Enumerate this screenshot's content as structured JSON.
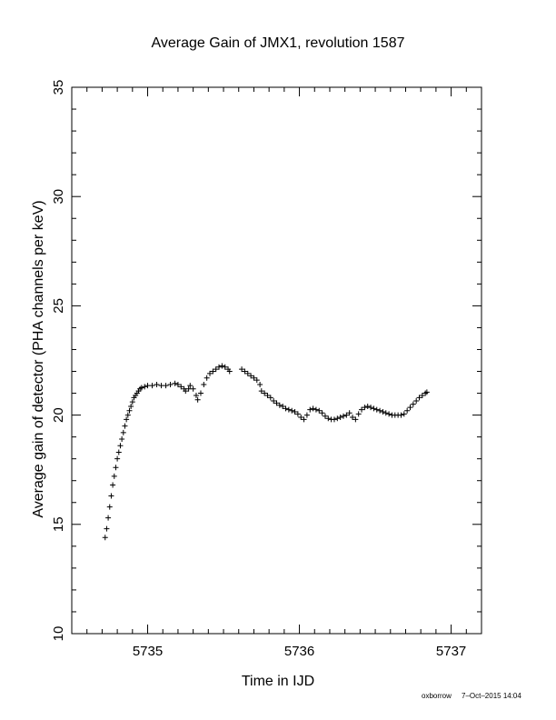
{
  "chart_data": {
    "type": "scatter",
    "title": "Average Gain of JMX1, revolution 1587",
    "xlabel": "Time in IJD",
    "ylabel": "Average gain of detector (PHA channels per keV)",
    "xlim": [
      5734.5,
      5737.2
    ],
    "ylim": [
      10,
      35
    ],
    "xticks": [
      5735,
      5736,
      5737
    ],
    "yticks": [
      10,
      15,
      20,
      25,
      30,
      35
    ],
    "x_minor_step": 0.1,
    "y_minor_step": 1,
    "marker": "plus",
    "grid": false,
    "series": [
      {
        "points": [
          [
            5734.72,
            14.4
          ],
          [
            5734.73,
            14.8
          ],
          [
            5734.74,
            15.3
          ],
          [
            5734.75,
            15.8
          ],
          [
            5734.76,
            16.3
          ],
          [
            5734.77,
            16.8
          ],
          [
            5734.78,
            17.2
          ],
          [
            5734.79,
            17.6
          ],
          [
            5734.8,
            18.0
          ],
          [
            5734.81,
            18.3
          ],
          [
            5734.82,
            18.6
          ],
          [
            5734.83,
            18.9
          ],
          [
            5734.84,
            19.2
          ],
          [
            5734.85,
            19.5
          ],
          [
            5734.86,
            19.8
          ],
          [
            5734.87,
            20.0
          ],
          [
            5734.88,
            20.2
          ],
          [
            5734.89,
            20.4
          ],
          [
            5734.9,
            20.6
          ],
          [
            5734.91,
            20.8
          ],
          [
            5734.92,
            20.9
          ],
          [
            5734.93,
            21.0
          ],
          [
            5734.94,
            21.1
          ],
          [
            5734.95,
            21.2
          ],
          [
            5734.96,
            21.25
          ],
          [
            5734.98,
            21.3
          ],
          [
            5735.0,
            21.35
          ],
          [
            5735.03,
            21.35
          ],
          [
            5735.06,
            21.4
          ],
          [
            5735.09,
            21.35
          ],
          [
            5735.12,
            21.35
          ],
          [
            5735.15,
            21.4
          ],
          [
            5735.18,
            21.45
          ],
          [
            5735.2,
            21.4
          ],
          [
            5735.22,
            21.3
          ],
          [
            5735.24,
            21.2
          ],
          [
            5735.25,
            21.1
          ],
          [
            5735.27,
            21.2
          ],
          [
            5735.28,
            21.35
          ],
          [
            5735.3,
            21.2
          ],
          [
            5735.32,
            20.9
          ],
          [
            5735.33,
            20.7
          ],
          [
            5735.35,
            21.0
          ],
          [
            5735.37,
            21.4
          ],
          [
            5735.39,
            21.7
          ],
          [
            5735.41,
            21.9
          ],
          [
            5735.43,
            22.0
          ],
          [
            5735.45,
            22.1
          ],
          [
            5735.47,
            22.2
          ],
          [
            5735.49,
            22.25
          ],
          [
            5735.51,
            22.2
          ],
          [
            5735.53,
            22.1
          ],
          [
            5735.54,
            22.0
          ],
          [
            5735.62,
            22.1
          ],
          [
            5735.64,
            22.0
          ],
          [
            5735.66,
            21.9
          ],
          [
            5735.68,
            21.8
          ],
          [
            5735.7,
            21.7
          ],
          [
            5735.72,
            21.6
          ],
          [
            5735.74,
            21.4
          ],
          [
            5735.75,
            21.1
          ],
          [
            5735.77,
            21.0
          ],
          [
            5735.79,
            20.9
          ],
          [
            5735.81,
            20.8
          ],
          [
            5735.83,
            20.65
          ],
          [
            5735.85,
            20.55
          ],
          [
            5735.87,
            20.45
          ],
          [
            5735.89,
            20.4
          ],
          [
            5735.91,
            20.3
          ],
          [
            5735.93,
            20.25
          ],
          [
            5735.95,
            20.2
          ],
          [
            5735.97,
            20.15
          ],
          [
            5735.99,
            20.05
          ],
          [
            5736.01,
            19.9
          ],
          [
            5736.03,
            19.8
          ],
          [
            5736.05,
            20.0
          ],
          [
            5736.07,
            20.25
          ],
          [
            5736.09,
            20.3
          ],
          [
            5736.11,
            20.25
          ],
          [
            5736.13,
            20.2
          ],
          [
            5736.15,
            20.1
          ],
          [
            5736.17,
            19.95
          ],
          [
            5736.19,
            19.85
          ],
          [
            5736.21,
            19.8
          ],
          [
            5736.23,
            19.8
          ],
          [
            5736.25,
            19.85
          ],
          [
            5736.27,
            19.9
          ],
          [
            5736.29,
            19.95
          ],
          [
            5736.31,
            20.0
          ],
          [
            5736.33,
            20.1
          ],
          [
            5736.35,
            19.9
          ],
          [
            5736.37,
            19.8
          ],
          [
            5736.39,
            20.05
          ],
          [
            5736.41,
            20.25
          ],
          [
            5736.43,
            20.35
          ],
          [
            5736.45,
            20.4
          ],
          [
            5736.47,
            20.35
          ],
          [
            5736.49,
            20.3
          ],
          [
            5736.51,
            20.25
          ],
          [
            5736.53,
            20.2
          ],
          [
            5736.55,
            20.15
          ],
          [
            5736.57,
            20.1
          ],
          [
            5736.59,
            20.05
          ],
          [
            5736.61,
            20.0
          ],
          [
            5736.63,
            20.0
          ],
          [
            5736.65,
            20.0
          ],
          [
            5736.67,
            20.0
          ],
          [
            5736.69,
            20.05
          ],
          [
            5736.71,
            20.2
          ],
          [
            5736.73,
            20.35
          ],
          [
            5736.75,
            20.5
          ],
          [
            5736.77,
            20.65
          ],
          [
            5736.79,
            20.8
          ],
          [
            5736.81,
            20.9
          ],
          [
            5736.83,
            21.0
          ],
          [
            5736.84,
            21.05
          ]
        ]
      }
    ]
  },
  "footer": {
    "user": "oxborrow",
    "timestamp": "7–Oct–2015 14:04"
  }
}
